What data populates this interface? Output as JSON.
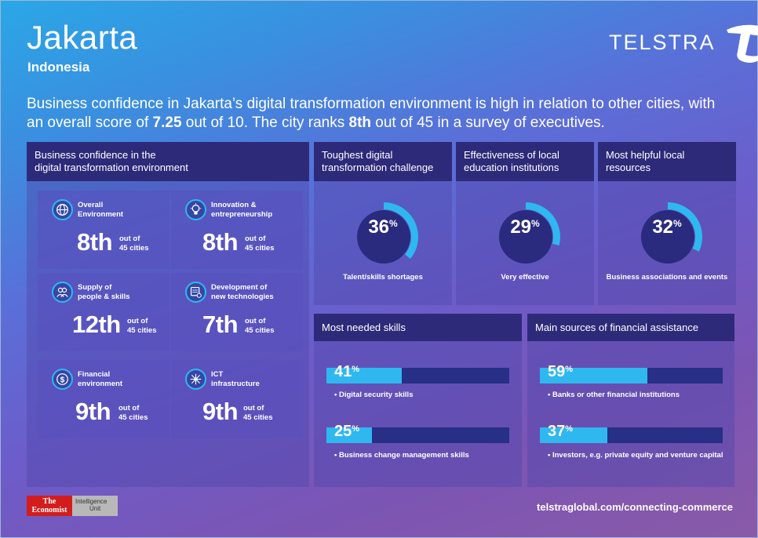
{
  "header": {
    "title": "Jakarta",
    "subtitle": "Indonesia",
    "brand": "TELSTRA"
  },
  "intro": {
    "part1": "Business confidence in Jakarta’s digital transformation environment is high in relation to other cities, with an overall score of ",
    "score": "7.25",
    "part2": " out of 10. The city ranks ",
    "rank": "8th",
    "part3": " out of 45 in a survey of executives."
  },
  "confidence_panel": {
    "title_line1": "Business confidence in the",
    "title_line2": "digital transformation environment",
    "out_of_line1": "out of",
    "out_of_line2": "45 cities",
    "cards": [
      {
        "label_line1": "Overall",
        "label_line2": "Environment",
        "rank": "8th",
        "icon": "globe-icon"
      },
      {
        "label_line1": "Innovation &",
        "label_line2": "entrepreneurship",
        "rank": "8th",
        "icon": "lightbulb-icon"
      },
      {
        "label_line1": "Supply of",
        "label_line2": "people & skills",
        "rank": "12th",
        "icon": "people-icon"
      },
      {
        "label_line1": "Development of",
        "label_line2": "new technologies",
        "rank": "7th",
        "icon": "tech-icon"
      },
      {
        "label_line1": "Financial",
        "label_line2": "environment",
        "rank": "9th",
        "icon": "dollar-icon"
      },
      {
        "label_line1": "ICT",
        "label_line2": "infrastructure",
        "rank": "9th",
        "icon": "network-icon"
      }
    ]
  },
  "donuts": [
    {
      "title_line1": "Toughest digital",
      "title_line2": "transformation challenge",
      "percent": 36,
      "percent_text": "36",
      "label": "Talent/skills shortages"
    },
    {
      "title_line1": "Effectiveness of local",
      "title_line2": "education institutions",
      "percent": 29,
      "percent_text": "29",
      "label": "Very effective"
    },
    {
      "title_line1": "Most helpful local",
      "title_line2": "resources",
      "percent": 32,
      "percent_text": "32",
      "label": "Business associations and events"
    }
  ],
  "skills_panel": {
    "title": "Most needed skills",
    "items": [
      {
        "percent": 41,
        "percent_text": "41",
        "label": "• Digital security skills"
      },
      {
        "percent": 25,
        "percent_text": "25",
        "label": "• Business change management skills"
      }
    ]
  },
  "finance_panel": {
    "title": "Main sources of financial assistance",
    "items": [
      {
        "percent": 59,
        "percent_text": "59",
        "label": "• Banks or other financial institutions"
      },
      {
        "percent": 37,
        "percent_text": "37",
        "label": "• Investors, e.g. private equity and venture capital"
      }
    ]
  },
  "percent_sign": "%",
  "footer": {
    "economist_line1": "The",
    "economist_line2": "Economist",
    "eiu_line1": "Intelligence",
    "eiu_line2": "Unit",
    "url": "telstraglobal.com/connecting-commerce"
  },
  "colors": {
    "accent": "#2fb8ef",
    "panel_header": "#2e2a7a",
    "donut_track": "#2a2a7e",
    "economist_red": "#d31d1d"
  }
}
